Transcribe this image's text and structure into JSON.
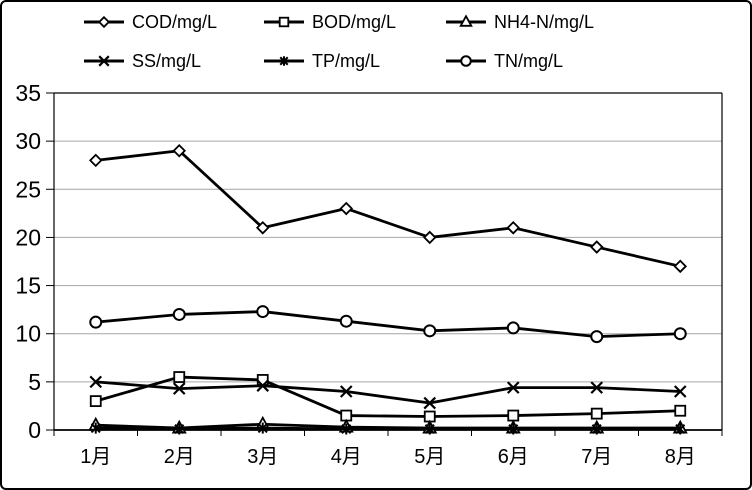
{
  "chart_data": {
    "type": "line",
    "title": "",
    "xlabel": "",
    "ylabel": "",
    "categories": [
      "1月",
      "2月",
      "3月",
      "4月",
      "5月",
      "6月",
      "7月",
      "8月"
    ],
    "series": [
      {
        "name": "COD/mg/L",
        "marker": "diamond",
        "values": [
          28,
          29,
          21,
          23,
          20,
          21,
          19,
          17
        ]
      },
      {
        "name": "BOD/mg/L",
        "marker": "square",
        "values": [
          3,
          5.5,
          5.2,
          1.5,
          1.4,
          1.5,
          1.7,
          2
        ]
      },
      {
        "name": "NH4-N/mg/L",
        "marker": "triangle",
        "values": [
          0.5,
          0.2,
          0.6,
          0.3,
          0.2,
          0.2,
          0.2,
          0.2
        ]
      },
      {
        "name": "SS/mg/L",
        "marker": "x",
        "values": [
          5,
          4.3,
          4.6,
          4,
          2.8,
          4.4,
          4.4,
          4
        ]
      },
      {
        "name": "TP/mg/L",
        "marker": "asterisk",
        "values": [
          0.2,
          0.1,
          0.2,
          0.1,
          0.1,
          0.1,
          0.1,
          0.1
        ]
      },
      {
        "name": "TN/mg/L",
        "marker": "circle",
        "values": [
          11.2,
          12,
          12.3,
          11.3,
          10.3,
          10.6,
          9.7,
          10
        ]
      }
    ],
    "ylim": [
      0,
      35
    ],
    "yticks": [
      0,
      5,
      10,
      15,
      20,
      25,
      30,
      35
    ],
    "grid": true,
    "legend_position": "top",
    "colors": {
      "line": "#000000",
      "marker_fill": "#ffffff",
      "grid": "#a6a6a6",
      "axis": "#000000",
      "background": "#ffffff",
      "border": "#000000",
      "text": "#000000"
    }
  }
}
